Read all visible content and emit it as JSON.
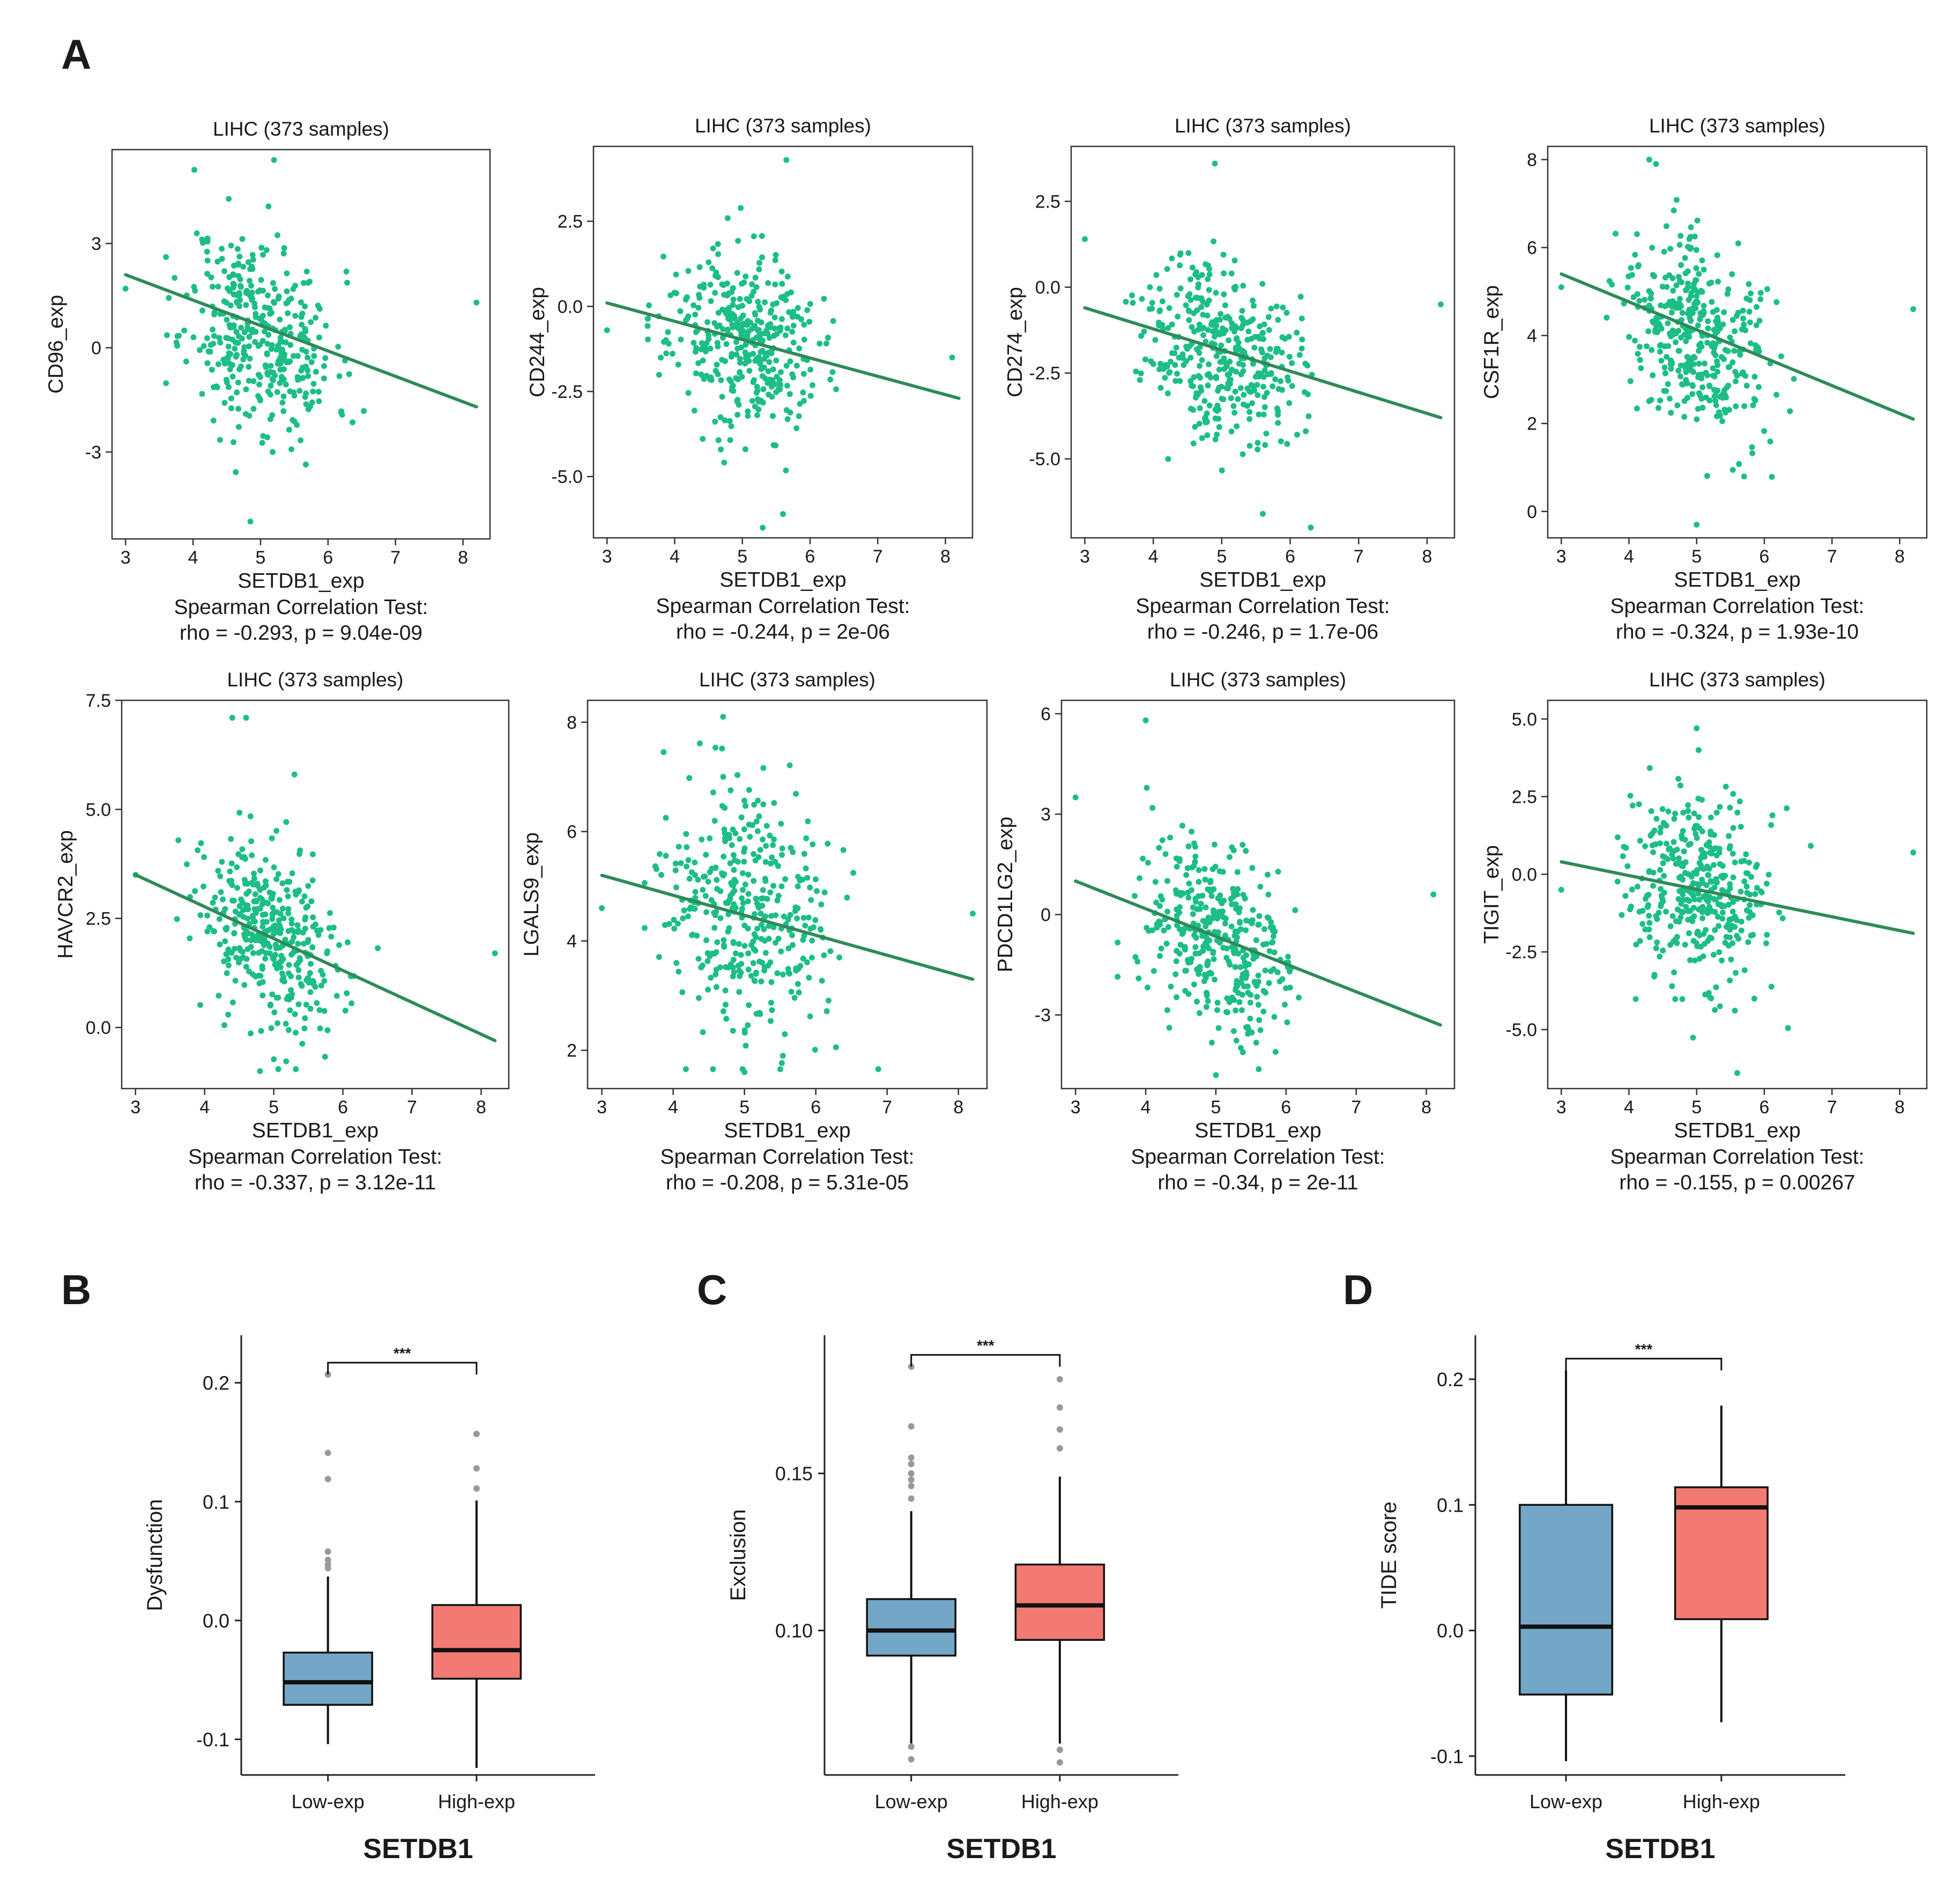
{
  "panel_labels": {
    "A": "A",
    "B": "B",
    "C": "C",
    "D": "D"
  },
  "colors": {
    "point": "#1DBE86",
    "fit_line": "#2E8B57",
    "low_box": "#73A6C7",
    "high_box": "#F27A72",
    "outlier": "#999999"
  },
  "chart_data": [
    {
      "type": "scatter",
      "title": "LIHC (373 samples)",
      "xlabel": "SETDB1_exp",
      "ylabel": "CD96_exp",
      "stat_line1": "Spearman Correlation Test:",
      "stat_line2": "rho = -0.293, p = 9.04e-09",
      "xlim": [
        2.8,
        8.4
      ],
      "ylim": [
        -5.5,
        5.7
      ],
      "xticks": [
        3,
        4,
        5,
        6,
        7,
        8
      ],
      "yticks": [
        -3,
        0,
        3
      ],
      "ytick_labels": [
        "-3",
        "0",
        "3"
      ],
      "fit": {
        "x": [
          3.0,
          8.2
        ],
        "y": [
          2.1,
          -1.7
        ]
      },
      "cloud": {
        "n": 373,
        "xmean": 5.0,
        "xsd": 0.55,
        "ymean": 0.35,
        "ysd": 1.55,
        "slope": -0.73,
        "seed": 11
      },
      "extra_points": [
        [
          3.0,
          1.7
        ],
        [
          8.2,
          1.3
        ],
        [
          5.2,
          5.4
        ],
        [
          4.85,
          -5.0
        ]
      ]
    },
    {
      "type": "scatter",
      "title": "LIHC (373 samples)",
      "xlabel": "SETDB1_exp",
      "ylabel": "CD244_exp",
      "stat_line1": "Spearman Correlation Test:",
      "stat_line2": "rho = -0.244, p = 2e-06",
      "xlim": [
        2.8,
        8.4
      ],
      "ylim": [
        -6.8,
        4.7
      ],
      "xticks": [
        3,
        4,
        5,
        6,
        7,
        8
      ],
      "yticks": [
        -5,
        -2.5,
        0,
        2.5
      ],
      "ytick_labels": [
        "-5.0",
        "-2.5",
        "0.0",
        "2.5"
      ],
      "fit": {
        "x": [
          3.0,
          8.2
        ],
        "y": [
          0.1,
          -2.7
        ]
      },
      "cloud": {
        "n": 373,
        "xmean": 5.0,
        "xsd": 0.55,
        "ymean": -1.0,
        "ysd": 1.4,
        "slope": -0.54,
        "seed": 23
      },
      "extra_points": [
        [
          3.0,
          -0.7
        ],
        [
          8.1,
          -1.5
        ],
        [
          5.65,
          4.3
        ],
        [
          5.3,
          -6.5
        ],
        [
          5.6,
          -6.1
        ]
      ]
    },
    {
      "type": "scatter",
      "title": "LIHC (373 samples)",
      "xlabel": "SETDB1_exp",
      "ylabel": "CD274_exp",
      "stat_line1": "Spearman Correlation Test:",
      "stat_line2": "rho = -0.246, p = 1.7e-06",
      "xlim": [
        2.8,
        8.4
      ],
      "ylim": [
        -7.3,
        4.1
      ],
      "xticks": [
        3,
        4,
        5,
        6,
        7,
        8
      ],
      "yticks": [
        -5,
        -2.5,
        0,
        2.5
      ],
      "ytick_labels": [
        "-5.0",
        "-2.5",
        "0.0",
        "2.5"
      ],
      "fit": {
        "x": [
          3.0,
          8.2
        ],
        "y": [
          -0.6,
          -3.8
        ]
      },
      "cloud": {
        "n": 373,
        "xmean": 5.0,
        "xsd": 0.55,
        "ymean": -1.8,
        "ysd": 1.4,
        "slope": -0.62,
        "seed": 37
      },
      "extra_points": [
        [
          3.0,
          1.4
        ],
        [
          8.2,
          -0.5
        ],
        [
          4.9,
          3.6
        ],
        [
          6.3,
          -7.0
        ],
        [
          5.6,
          -6.6
        ]
      ]
    },
    {
      "type": "scatter",
      "title": "LIHC (373 samples)",
      "xlabel": "SETDB1_exp",
      "ylabel": "CSF1R_exp",
      "stat_line1": "Spearman Correlation Test:",
      "stat_line2": "rho = -0.324, p = 1.93e-10",
      "xlim": [
        2.8,
        8.4
      ],
      "ylim": [
        -0.6,
        8.3
      ],
      "xticks": [
        3,
        4,
        5,
        6,
        7,
        8
      ],
      "yticks": [
        0,
        2,
        4,
        6,
        8
      ],
      "ytick_labels": [
        "0",
        "2",
        "4",
        "6",
        "8"
      ],
      "fit": {
        "x": [
          3.0,
          8.2
        ],
        "y": [
          5.4,
          2.1
        ]
      },
      "cloud": {
        "n": 373,
        "xmean": 5.0,
        "xsd": 0.55,
        "ymean": 4.0,
        "ysd": 1.2,
        "slope": -0.64,
        "seed": 41
      },
      "extra_points": [
        [
          3.0,
          5.1
        ],
        [
          8.2,
          4.6
        ],
        [
          4.3,
          8.0
        ],
        [
          4.4,
          7.9
        ],
        [
          5.0,
          -0.3
        ]
      ]
    },
    {
      "type": "scatter",
      "title": "LIHC (373 samples)",
      "xlabel": "SETDB1_exp",
      "ylabel": "HAVCR2_exp",
      "stat_line1": "Spearman Correlation Test:",
      "stat_line2": "rho = -0.337, p = 3.12e-11",
      "xlim": [
        2.8,
        8.4
      ],
      "ylim": [
        -1.4,
        7.5
      ],
      "xticks": [
        3,
        4,
        5,
        6,
        7,
        8
      ],
      "yticks": [
        0,
        2.5,
        5,
        7.5
      ],
      "ytick_labels": [
        "0.0",
        "2.5",
        "5.0",
        "7.5"
      ],
      "fit": {
        "x": [
          3.0,
          8.2
        ],
        "y": [
          3.5,
          -0.3
        ]
      },
      "cloud": {
        "n": 373,
        "xmean": 5.0,
        "xsd": 0.55,
        "ymean": 2.0,
        "ysd": 1.15,
        "slope": -0.73,
        "seed": 53
      },
      "extra_points": [
        [
          3.0,
          3.5
        ],
        [
          8.2,
          1.7
        ],
        [
          4.4,
          7.1
        ],
        [
          4.6,
          7.1
        ],
        [
          5.3,
          5.8
        ],
        [
          4.8,
          -1.0
        ]
      ]
    },
    {
      "type": "scatter",
      "title": "LIHC (373 samples)",
      "xlabel": "SETDB1_exp",
      "ylabel": "LGALS9_exp",
      "stat_line1": "Spearman Correlation Test:",
      "stat_line2": "rho = -0.208, p = 5.31e-05",
      "xlim": [
        2.8,
        8.4
      ],
      "ylim": [
        1.3,
        8.4
      ],
      "xticks": [
        3,
        4,
        5,
        6,
        7,
        8
      ],
      "yticks": [
        2,
        4,
        6,
        8
      ],
      "ytick_labels": [
        "2",
        "4",
        "6",
        "8"
      ],
      "fit": {
        "x": [
          3.0,
          8.2
        ],
        "y": [
          5.2,
          3.3
        ]
      },
      "cloud": {
        "n": 373,
        "xmean": 5.0,
        "xsd": 0.55,
        "ymean": 4.4,
        "ysd": 1.25,
        "slope": -0.37,
        "seed": 67
      },
      "extra_points": [
        [
          3.0,
          4.6
        ],
        [
          8.2,
          4.5
        ],
        [
          4.7,
          8.1
        ],
        [
          5.0,
          1.6
        ]
      ]
    },
    {
      "type": "scatter",
      "title": "LIHC (373 samples)",
      "xlabel": "SETDB1_exp",
      "ylabel": "PDCD1LG2_exp",
      "stat_line1": "Spearman Correlation Test:",
      "stat_line2": "rho = -0.34, p = 2e-11",
      "xlim": [
        2.8,
        8.4
      ],
      "ylim": [
        -5.2,
        6.4
      ],
      "xticks": [
        3,
        4,
        5,
        6,
        7,
        8
      ],
      "yticks": [
        -3,
        0,
        3,
        6
      ],
      "ytick_labels": [
        "-3",
        "0",
        "3",
        "6"
      ],
      "fit": {
        "x": [
          3.0,
          8.2
        ],
        "y": [
          1.0,
          -3.3
        ]
      },
      "cloud": {
        "n": 373,
        "xmean": 5.0,
        "xsd": 0.55,
        "ymean": -0.6,
        "ysd": 1.5,
        "slope": -0.83,
        "seed": 79
      },
      "extra_points": [
        [
          3.0,
          3.5
        ],
        [
          8.1,
          0.6
        ],
        [
          4.0,
          5.8
        ],
        [
          5.0,
          -4.8
        ]
      ]
    },
    {
      "type": "scatter",
      "title": "LIHC (373 samples)",
      "xlabel": "SETDB1_exp",
      "ylabel": "TIGIT_exp",
      "stat_line1": "Spearman Correlation Test:",
      "stat_line2": "rho = -0.155, p = 0.00267",
      "xlim": [
        2.8,
        8.4
      ],
      "ylim": [
        -6.9,
        5.6
      ],
      "xticks": [
        3,
        4,
        5,
        6,
        7,
        8
      ],
      "yticks": [
        -5,
        -2.5,
        0,
        2.5,
        5
      ],
      "ytick_labels": [
        "-5.0",
        "-2.5",
        "0.0",
        "2.5",
        "5.0"
      ],
      "fit": {
        "x": [
          3.0,
          8.2
        ],
        "y": [
          0.4,
          -1.9
        ]
      },
      "cloud": {
        "n": 373,
        "xmean": 5.0,
        "xsd": 0.55,
        "ymean": -0.5,
        "ysd": 1.8,
        "slope": -0.44,
        "seed": 97
      },
      "extra_points": [
        [
          3.0,
          -0.5
        ],
        [
          8.2,
          0.7
        ],
        [
          5.0,
          4.7
        ],
        [
          5.6,
          -6.4
        ]
      ]
    },
    {
      "type": "box",
      "ylabel": "Dysfunction",
      "xlabel": "SETDB1",
      "categories": [
        "Low-exp",
        "High-exp"
      ],
      "ylim": [
        -0.13,
        0.24
      ],
      "yticks": [
        -0.1,
        0.0,
        0.1,
        0.2
      ],
      "ytick_labels": [
        "-0.1",
        "0.0",
        "0.1",
        "0.2"
      ],
      "significance": "***",
      "boxes": [
        {
          "q1": -0.071,
          "median": -0.052,
          "q3": -0.027,
          "whisker_low": -0.104,
          "whisker_high": 0.037,
          "outliers": [
            0.207,
            0.141,
            0.119,
            0.058,
            0.051,
            0.047,
            0.044
          ]
        },
        {
          "q1": -0.049,
          "median": -0.025,
          "q3": 0.013,
          "whisker_low": -0.124,
          "whisker_high": 0.101,
          "outliers": [
            0.157,
            0.128,
            0.111
          ]
        }
      ]
    },
    {
      "type": "box",
      "ylabel": "Exclusion",
      "xlabel": "SETDB1",
      "categories": [
        "Low-exp",
        "High-exp"
      ],
      "ylim": [
        0.054,
        0.194
      ],
      "yticks": [
        0.1,
        0.15
      ],
      "ytick_labels": [
        "0.10",
        "0.15"
      ],
      "significance": "***",
      "boxes": [
        {
          "q1": 0.092,
          "median": 0.1,
          "q3": 0.11,
          "whisker_low": 0.064,
          "whisker_high": 0.138,
          "outliers": [
            0.184,
            0.165,
            0.155,
            0.153,
            0.15,
            0.148,
            0.146,
            0.142,
            0.063,
            0.059
          ]
        },
        {
          "q1": 0.097,
          "median": 0.108,
          "q3": 0.121,
          "whisker_low": 0.064,
          "whisker_high": 0.149,
          "outliers": [
            0.18,
            0.171,
            0.164,
            0.158,
            0.062,
            0.058
          ]
        }
      ]
    },
    {
      "type": "box",
      "ylabel": "TIDE score",
      "xlabel": "SETDB1",
      "categories": [
        "Low-exp",
        "High-exp"
      ],
      "ylim": [
        -0.115,
        0.235
      ],
      "yticks": [
        -0.1,
        0.0,
        0.1,
        0.2
      ],
      "ytick_labels": [
        "-0.1",
        "0.0",
        "0.1",
        "0.2"
      ],
      "significance": "***",
      "boxes": [
        {
          "q1": -0.051,
          "median": 0.003,
          "q3": 0.1,
          "whisker_low": -0.104,
          "whisker_high": 0.207,
          "outliers": []
        },
        {
          "q1": 0.009,
          "median": 0.098,
          "q3": 0.114,
          "whisker_low": -0.073,
          "whisker_high": 0.179,
          "outliers": []
        }
      ]
    }
  ]
}
